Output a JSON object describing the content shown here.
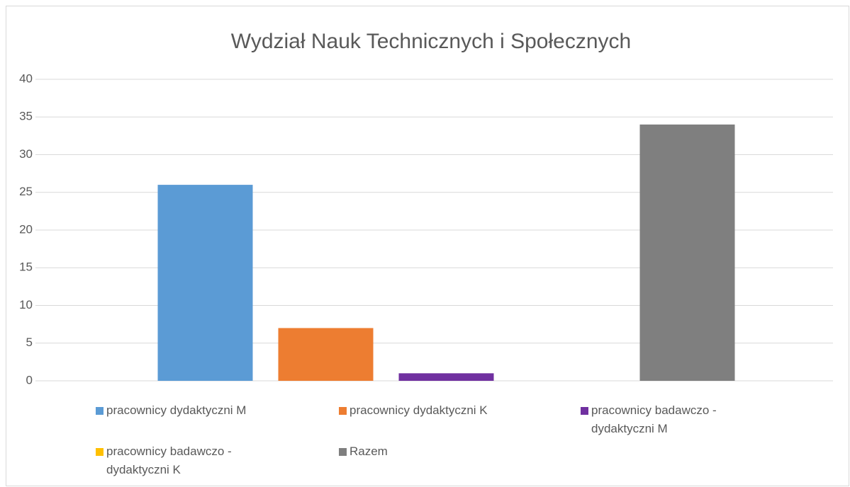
{
  "chart_data": {
    "type": "bar",
    "title": "Wydział Nauk Technicznych i Społecznych",
    "categories": [
      null
    ],
    "series": [
      {
        "name": "pracownicy dydaktyczni M",
        "color": "#5b9bd5",
        "values": [
          26
        ]
      },
      {
        "name": "pracownicy dydaktyczni K",
        "color": "#ed7d31",
        "values": [
          7
        ]
      },
      {
        "name": "pracownicy badawczo - dydaktyczni M",
        "color": "#7030a0",
        "values": [
          1
        ]
      },
      {
        "name": "pracownicy badawczo - dydaktyczni K",
        "color": "#ffc000",
        "values": [
          0
        ]
      },
      {
        "name": "Razem",
        "color": "#7f7f7f",
        "values": [
          34
        ]
      }
    ],
    "ylim": [
      0,
      40
    ],
    "yticks": [
      0,
      5,
      10,
      15,
      20,
      25,
      30,
      35,
      40
    ],
    "grid": true,
    "legend": "bottom"
  }
}
